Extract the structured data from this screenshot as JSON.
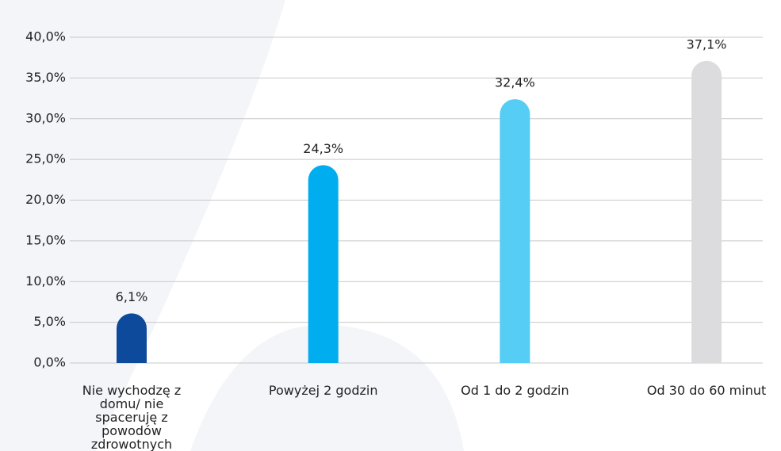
{
  "chart_data": {
    "type": "bar",
    "categories": [
      "Nie wychodzę z domu/ nie spaceruję z powodów zdrowotnych",
      "Powyżej 2 godzin",
      "Od 1 do 2 godzin",
      "Od 30 do 60 minut"
    ],
    "values": [
      6.1,
      24.3,
      32.4,
      37.1
    ],
    "value_labels": [
      "6,1%",
      "24,3%",
      "32,4%",
      "37,1%"
    ],
    "colors": [
      "#0d4a9b",
      "#00adef",
      "#56cdf5",
      "#dcdcde"
    ],
    "ylim": [
      0,
      40
    ],
    "yticks": [
      {
        "value": 0,
        "label": "0,0%"
      },
      {
        "value": 5,
        "label": "5,0%"
      },
      {
        "value": 10,
        "label": "10,0%"
      },
      {
        "value": 15,
        "label": "15,0%"
      },
      {
        "value": 20,
        "label": "20,0%"
      },
      {
        "value": 25,
        "label": "25,0%"
      },
      {
        "value": 30,
        "label": "30,0%"
      },
      {
        "value": 35,
        "label": "35,0%"
      },
      {
        "value": 40,
        "label": "40,0%"
      }
    ],
    "grid": true
  }
}
